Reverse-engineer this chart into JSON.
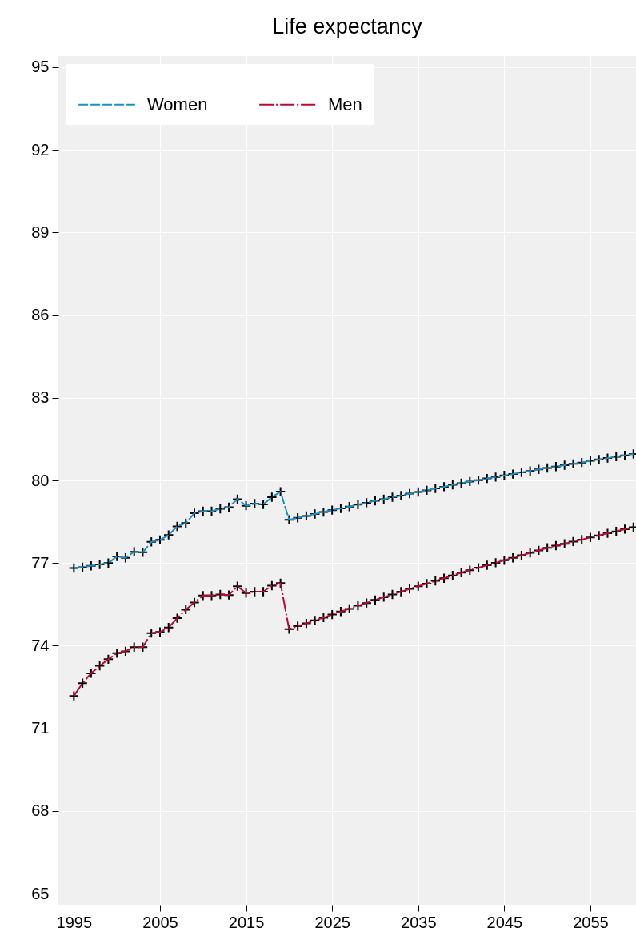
{
  "chart_data": {
    "type": "line",
    "title": "Life expectancy",
    "x": [
      1995,
      1996,
      1997,
      1998,
      1999,
      2000,
      2001,
      2002,
      2003,
      2004,
      2005,
      2006,
      2007,
      2008,
      2009,
      2010,
      2011,
      2012,
      2013,
      2014,
      2015,
      2016,
      2017,
      2018,
      2019,
      2020,
      2021,
      2022,
      2023,
      2024,
      2025,
      2026,
      2027,
      2028,
      2029,
      2030,
      2031,
      2032,
      2033,
      2034,
      2035,
      2036,
      2037,
      2038,
      2039,
      2040,
      2041,
      2042,
      2043,
      2044,
      2045,
      2046,
      2047,
      2048,
      2049,
      2050,
      2051,
      2052,
      2053,
      2054,
      2055,
      2056,
      2057,
      2058,
      2059,
      2060
    ],
    "series": [
      {
        "name": "Women",
        "color": "#1a8fc1",
        "line_style": "dashed",
        "values": [
          76.82,
          76.85,
          76.9,
          76.95,
          77.0,
          77.24,
          77.19,
          77.41,
          77.39,
          77.77,
          77.84,
          78.02,
          78.33,
          78.45,
          78.81,
          78.88,
          78.88,
          78.97,
          79.03,
          79.32,
          79.08,
          79.16,
          79.13,
          79.39,
          79.59,
          78.57,
          78.64,
          78.71,
          78.78,
          78.85,
          78.92,
          78.98,
          79.05,
          79.12,
          79.19,
          79.26,
          79.32,
          79.39,
          79.45,
          79.52,
          79.58,
          79.64,
          79.71,
          79.77,
          79.84,
          79.9,
          79.96,
          80.01,
          80.07,
          80.12,
          80.18,
          80.23,
          80.29,
          80.34,
          80.4,
          80.45,
          80.5,
          80.55,
          80.6,
          80.65,
          80.71,
          80.76,
          80.81,
          80.86,
          80.91,
          80.96
        ]
      },
      {
        "name": "Men",
        "color": "#c10534",
        "line_style": "dashdot",
        "values": [
          72.18,
          72.64,
          73.0,
          73.27,
          73.51,
          73.73,
          73.8,
          73.95,
          73.95,
          74.46,
          74.5,
          74.66,
          75.0,
          75.31,
          75.57,
          75.82,
          75.82,
          75.86,
          75.84,
          76.16,
          75.91,
          75.96,
          75.96,
          76.18,
          76.27,
          74.6,
          74.71,
          74.81,
          74.92,
          75.02,
          75.13,
          75.24,
          75.34,
          75.45,
          75.55,
          75.66,
          75.76,
          75.86,
          75.96,
          76.06,
          76.16,
          76.25,
          76.35,
          76.45,
          76.55,
          76.65,
          76.74,
          76.83,
          76.92,
          77.01,
          77.1,
          77.19,
          77.28,
          77.37,
          77.46,
          77.55,
          77.63,
          77.7,
          77.78,
          77.85,
          77.93,
          78.0,
          78.08,
          78.15,
          78.23,
          78.3
        ]
      }
    ],
    "xlim": [
      1993.2,
      2060.3
    ],
    "xticks": [
      1995,
      2005,
      2015,
      2025,
      2035,
      2045,
      2055,
      {
        "value": 2060,
        "label": null
      }
    ],
    "ylim": [
      64.6,
      95.4
    ],
    "yticks": [
      65,
      68,
      71,
      74,
      77,
      80,
      83,
      86,
      89,
      92,
      95
    ],
    "grid": true,
    "legend": "top left",
    "marker": "cross"
  }
}
